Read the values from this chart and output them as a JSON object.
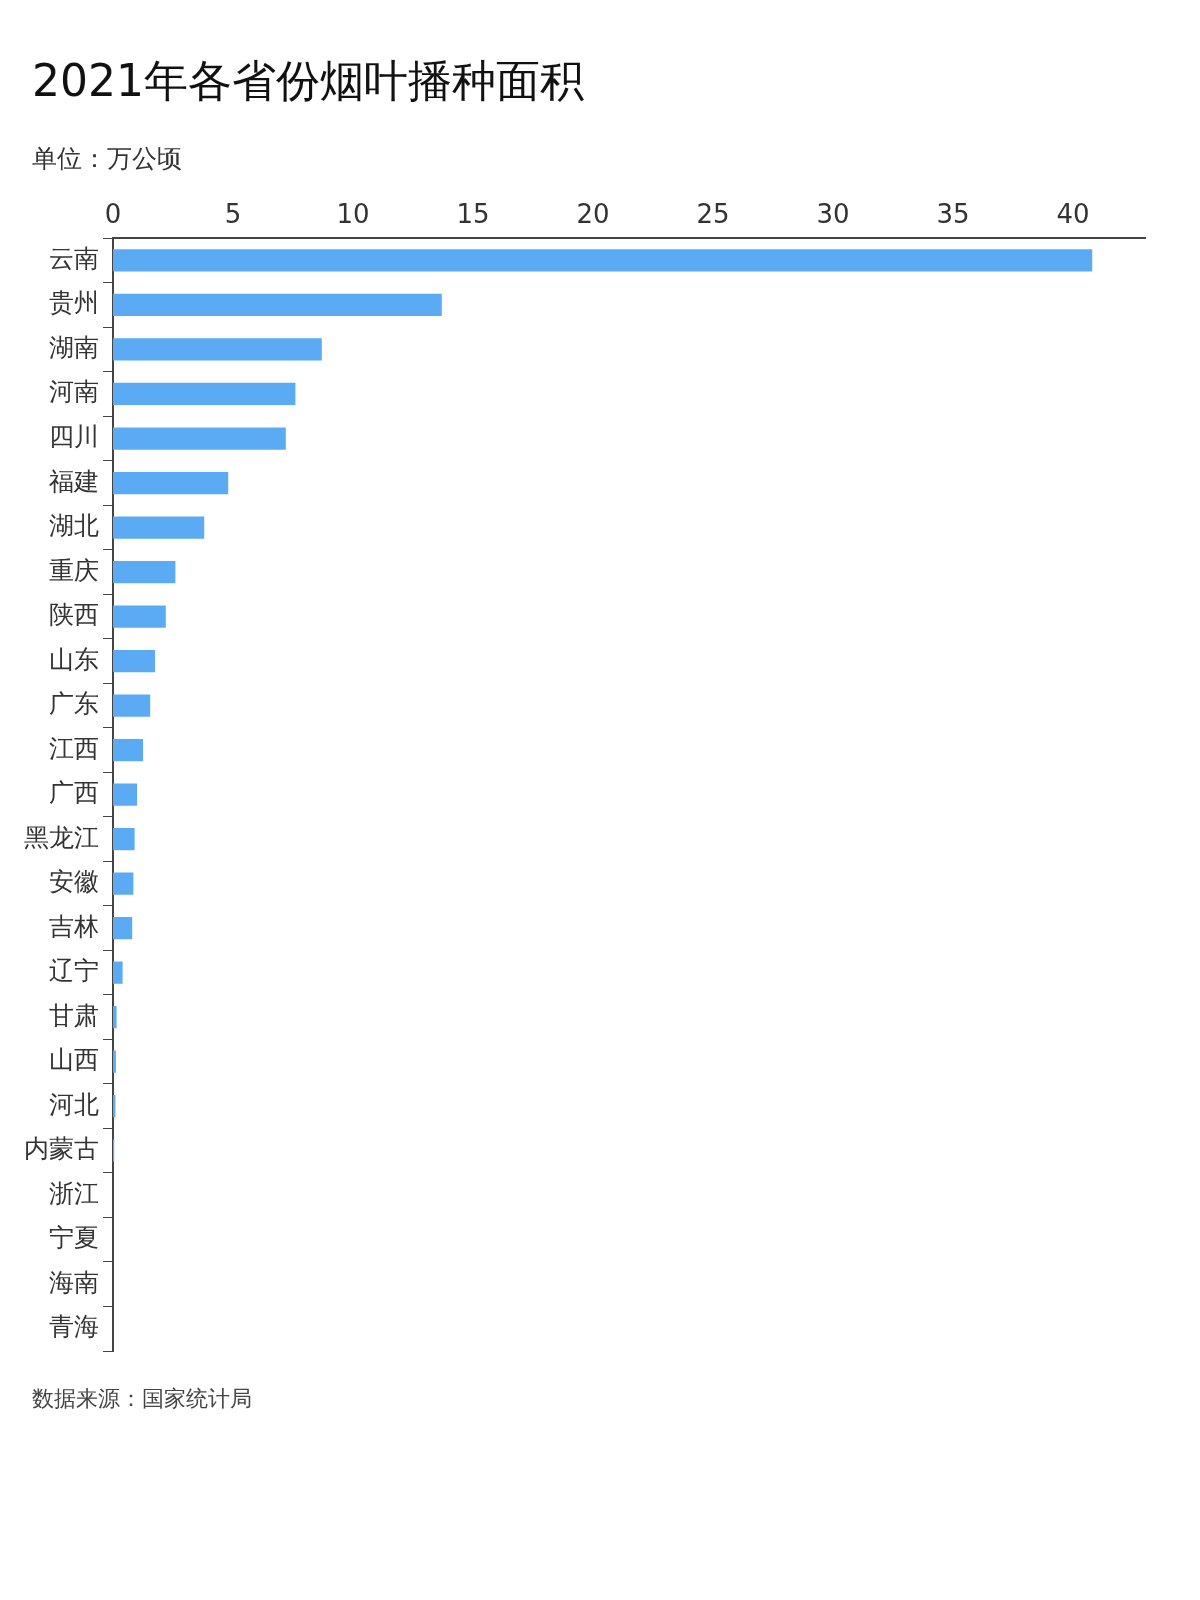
{
  "chart_data": {
    "type": "bar",
    "orientation": "horizontal",
    "title": "2021年各省份烟叶播种面积",
    "subtitle": "单位：万公顷",
    "categories": [
      "云南",
      "贵州",
      "湖南",
      "河南",
      "四川",
      "福建",
      "湖北",
      "重庆",
      "陕西",
      "山东",
      "广东",
      "江西",
      "广西",
      "黑龙江",
      "安徽",
      "吉林",
      "辽宁",
      "甘肃",
      "山西",
      "河北",
      "内蒙古",
      "浙江",
      "宁夏",
      "海南",
      "青海"
    ],
    "values": [
      40.8,
      13.7,
      8.7,
      7.6,
      7.2,
      4.8,
      3.8,
      2.6,
      2.2,
      1.75,
      1.55,
      1.25,
      1,
      0.9,
      0.85,
      0.8,
      0.4,
      0.15,
      0.12,
      0.1,
      0.05,
      0,
      0,
      0,
      0
    ],
    "color": "#5aabf3",
    "xlim": [
      0,
      43
    ],
    "xticks": [
      0,
      5,
      10,
      15,
      20,
      25,
      30,
      35,
      40
    ],
    "grid": false,
    "legend": false,
    "annotations": [
      "数据来源：国家统计局"
    ]
  }
}
